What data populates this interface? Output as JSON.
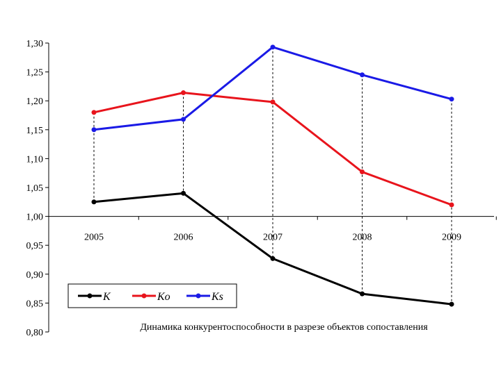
{
  "chart_data": {
    "type": "line",
    "title": "",
    "xlabel": "",
    "ylabel": "",
    "categories": [
      "2005",
      "2006",
      "2007",
      "2008",
      "2009"
    ],
    "ylim": [
      0.8,
      1.3
    ],
    "ytick_labels": [
      "0,80",
      "0,85",
      "0,90",
      "0,95",
      "1,00",
      "1,05",
      "1,10",
      "1,15",
      "1,20",
      "1,25",
      "1,30"
    ],
    "ytick_values": [
      0.8,
      0.85,
      0.9,
      0.95,
      1.0,
      1.05,
      1.1,
      1.15,
      1.2,
      1.25,
      1.3
    ],
    "x_axis_at": 1.0,
    "grid": false,
    "drop_lines": true,
    "series": [
      {
        "name": "K",
        "color": "#000000",
        "values": [
          1.025,
          1.04,
          0.927,
          0.866,
          0.848
        ]
      },
      {
        "name": "Ko",
        "color": "#e8141c",
        "values": [
          1.18,
          1.214,
          1.198,
          1.077,
          1.02
        ]
      },
      {
        "name": "Ks",
        "color": "#1a1ae6",
        "values": [
          1.15,
          1.168,
          1.293,
          1.245,
          1.203
        ]
      }
    ],
    "legend_position": "bottom-left",
    "annotation": "Динамика конкурентоспособности в разрезе объектов сопоставления"
  }
}
